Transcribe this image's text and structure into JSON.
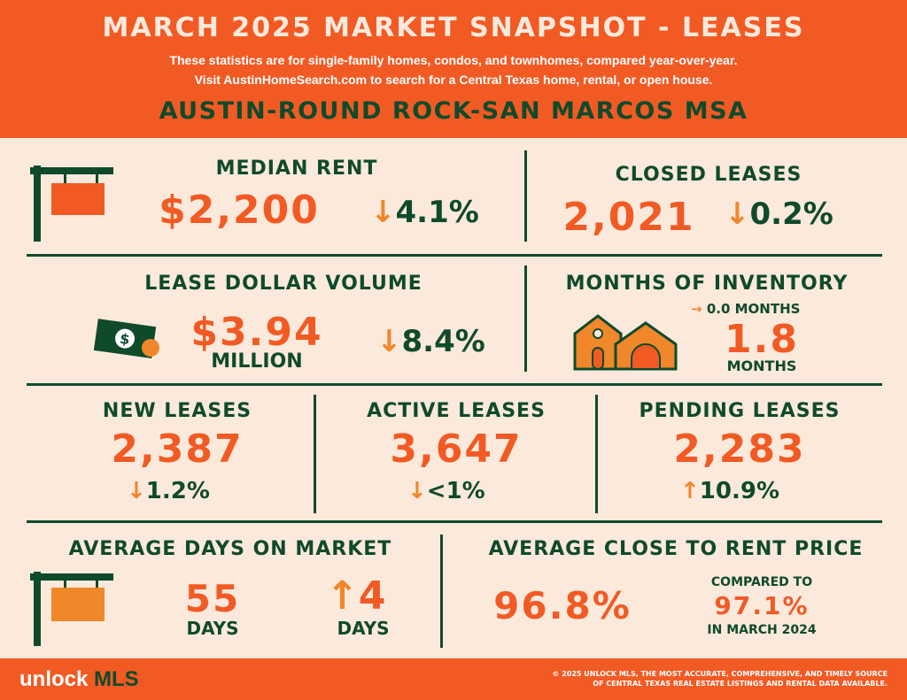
{
  "header": {
    "title": "MARCH 2025 MARKET SNAPSHOT - LEASES",
    "line1": "These statistics are for single-family homes, condos, and townhomes, compared year-over-year.",
    "line2": "Visit AustinHomeSearch.com to search for a Central Texas home, rental, or open house.",
    "region": "AUSTIN-ROUND ROCK-SAN MARCOS MSA"
  },
  "median_rent": {
    "label": "MEDIAN RENT",
    "value": "$2,200",
    "arrow": "↓",
    "change": "4.1%"
  },
  "closed_leases": {
    "label": "CLOSED LEASES",
    "value": "2,021",
    "arrow": "↓",
    "change": "0.2%"
  },
  "lease_volume": {
    "label": "LEASE DOLLAR VOLUME",
    "value": "$3.94",
    "unit": "MILLION",
    "arrow": "↓",
    "change": "8.4%"
  },
  "inventory": {
    "label": "MONTHS OF INVENTORY",
    "change_arrow": "→",
    "change": "0.0  MONTHS",
    "value": "1.8",
    "unit": "MONTHS"
  },
  "new_leases": {
    "label": "NEW LEASES",
    "value": "2,387",
    "arrow": "↓",
    "change": "1.2%"
  },
  "active_leases": {
    "label": "ACTIVE LEASES",
    "value": "3,647",
    "arrow": "↓",
    "change": "<1%"
  },
  "pending_leases": {
    "label": "PENDING LEASES",
    "value": "2,283",
    "arrow": "↑",
    "change": "10.9%"
  },
  "days_on_market": {
    "label": "AVERAGE DAYS ON MARKET",
    "value": "55",
    "unit": "DAYS",
    "arrow": "↑",
    "change": "4",
    "change_unit": "DAYS"
  },
  "close_to_rent": {
    "label": "AVERAGE CLOSE TO RENT PRICE",
    "value": "96.8%",
    "compared_label": "COMPARED TO",
    "compared_value": "97.1%",
    "compared_period": "IN MARCH 2024"
  },
  "footer": {
    "logo_a": "unlock",
    "logo_b": "MLS",
    "fine1": "© 2025 UNLOCK MLS, THE MOST ACCURATE, COMPREHENSIVE, AND TIMELY SOURCE",
    "fine2": "OF CENTRAL TEXAS REAL ESTATE LISTINGS AND RENTAL DATA AVAILABLE."
  },
  "icons": [
    "sign-icon",
    "money-icon",
    "house-icon",
    "sign-icon"
  ],
  "colors": {
    "orange": "#f25a24",
    "green": "#0f4a2a",
    "cream": "#fbe9dc",
    "accent": "#f0872a"
  }
}
